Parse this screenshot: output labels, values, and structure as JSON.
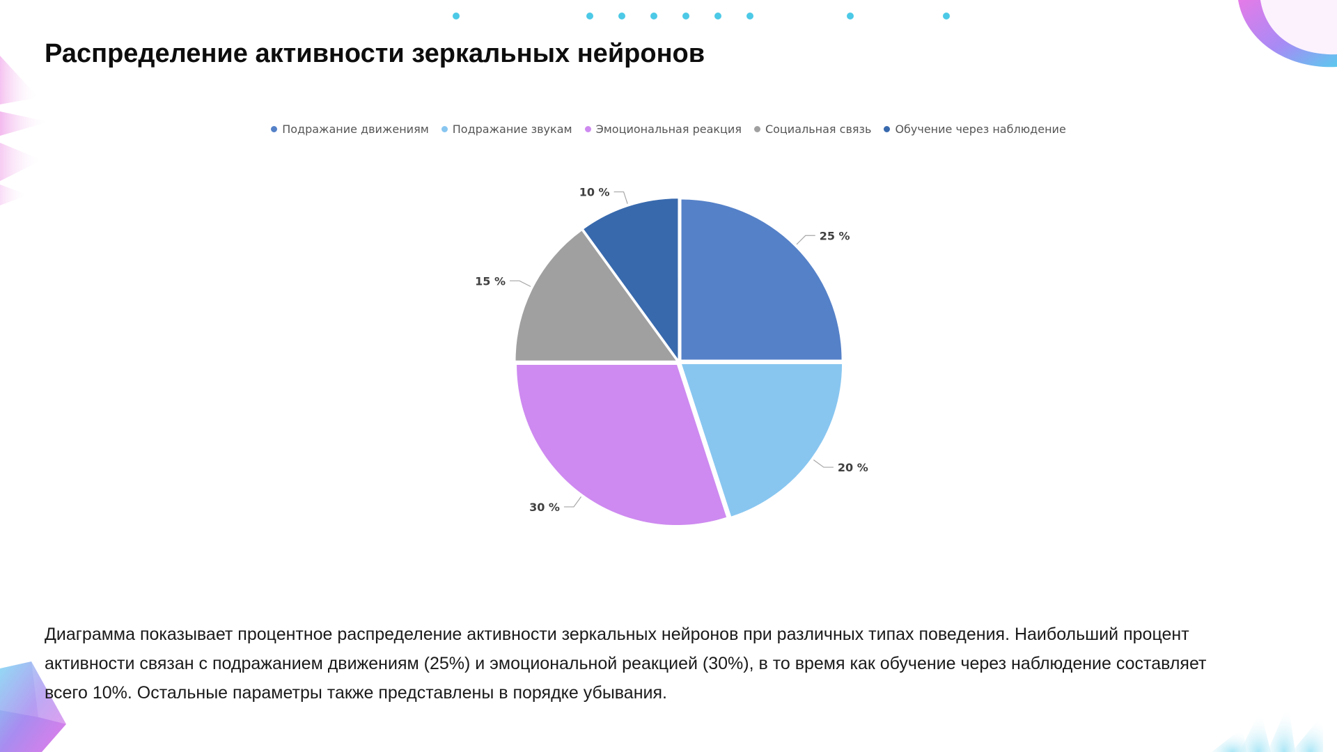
{
  "title": "Распределение активности зеркальных нейронов",
  "description": "Диаграмма показывает процентное распределение активности зеркальных нейронов при различных типах поведения. Наибольший процент активности связан с подражанием движениям (25%) и эмоциональной реакцией (30%), в то время как обучение через наблюдение составляет всего 10%. Остальные параметры также представлены в порядке убывания.",
  "colors": {
    "accent_dots": "#4cc9e6"
  },
  "chart_data": {
    "type": "pie",
    "title": "",
    "legend_position": "top",
    "categories": [
      "Подражание движениям",
      "Подражание звукам",
      "Эмоциональная реакция",
      "Социальная связь",
      "Обучение через наблюдение"
    ],
    "values": [
      25,
      20,
      30,
      15,
      10
    ],
    "data_labels": [
      "25 %",
      "20 %",
      "30 %",
      "15 %",
      "10 %"
    ],
    "colors": [
      "#5581c8",
      "#88c6f0",
      "#ce8af0",
      "#a0a0a0",
      "#3869ad"
    ]
  }
}
